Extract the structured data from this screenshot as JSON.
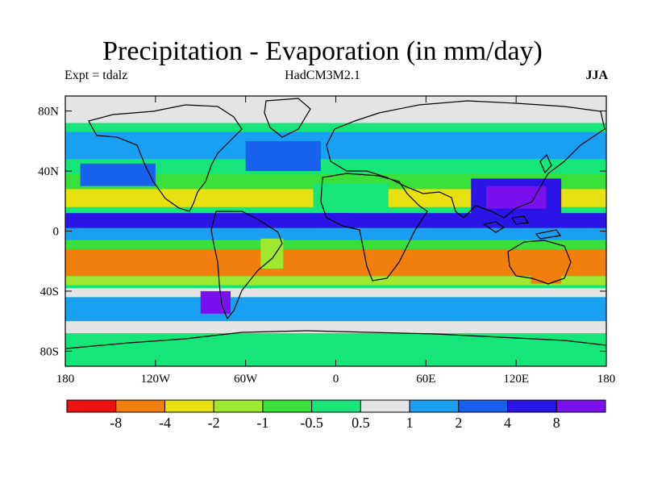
{
  "title": "Precipitation - Evaporation (in mm/day)",
  "experiment": "Expt = tdalz",
  "model": "HadCM3M2.1",
  "season": "JJA",
  "map": {
    "projection": "cylindrical equidistant",
    "lon_range": [
      -180,
      180
    ],
    "lat_range": [
      -90,
      90
    ],
    "lat_ticks": [
      {
        "lat": 80,
        "label": "80N"
      },
      {
        "lat": 40,
        "label": "40N"
      },
      {
        "lat": 0,
        "label": "0"
      },
      {
        "lat": -40,
        "label": "40S"
      },
      {
        "lat": -80,
        "label": "80S"
      }
    ],
    "lon_ticks": [
      {
        "lon": -180,
        "label": "180"
      },
      {
        "lon": -120,
        "label": "120W"
      },
      {
        "lon": -60,
        "label": "60W"
      },
      {
        "lon": 0,
        "label": "0"
      },
      {
        "lon": 60,
        "label": "60E"
      },
      {
        "lon": 120,
        "label": "120E"
      },
      {
        "lon": 180,
        "label": "180"
      }
    ]
  },
  "colorbar": {
    "colors": [
      "#ee1111",
      "#f07f0c",
      "#e8e010",
      "#9ee830",
      "#3ae03a",
      "#16e67a",
      "#e4e4e4",
      "#1aa0f0",
      "#1860ee",
      "#2a14e6",
      "#7a10ee"
    ],
    "labels": [
      "-8",
      "-4",
      "-2",
      "-1",
      "-0.5",
      "0.5",
      "1",
      "2",
      "4",
      "8"
    ]
  },
  "regions": {
    "background": 5,
    "bands": [
      {
        "lat": [
          72,
          90
        ],
        "level": 6
      },
      {
        "lat": [
          48,
          66
        ],
        "level": 7
      },
      {
        "lat": [
          28,
          38
        ],
        "level": 4
      },
      {
        "lat": [
          16,
          28
        ],
        "level": 2
      },
      {
        "lat": [
          2,
          12
        ],
        "level": 9
      },
      {
        "lat": [
          -6,
          2
        ],
        "level": 7
      },
      {
        "lat": [
          -12,
          -6
        ],
        "level": 4
      },
      {
        "lat": [
          -30,
          -12
        ],
        "level": 1
      },
      {
        "lat": [
          -36,
          -30
        ],
        "level": 3
      },
      {
        "lat": [
          -44,
          -38
        ],
        "level": 6
      },
      {
        "lat": [
          -60,
          -44
        ],
        "level": 7
      },
      {
        "lat": [
          -68,
          -60
        ],
        "level": 6
      }
    ],
    "patches": [
      {
        "lon": [
          -170,
          -120
        ],
        "lat": [
          30,
          45
        ],
        "level": 8
      },
      {
        "lon": [
          -60,
          -10
        ],
        "lat": [
          40,
          60
        ],
        "level": 8
      },
      {
        "lon": [
          90,
          150
        ],
        "lat": [
          5,
          35
        ],
        "level": 9
      },
      {
        "lon": [
          100,
          140
        ],
        "lat": [
          15,
          30
        ],
        "level": 10
      },
      {
        "lon": [
          -90,
          -70
        ],
        "lat": [
          -55,
          -40
        ],
        "level": 10
      },
      {
        "lon": [
          -15,
          35
        ],
        "lat": [
          15,
          32
        ],
        "level": 5
      },
      {
        "lon": [
          -10,
          10
        ],
        "lat": [
          5,
          12
        ],
        "level": 9
      },
      {
        "lon": [
          130,
          150
        ],
        "lat": [
          -35,
          -15
        ],
        "level": 1
      },
      {
        "lon": [
          -50,
          -35
        ],
        "lat": [
          -25,
          -5
        ],
        "level": 3
      },
      {
        "lon": [
          -180,
          180
        ],
        "lat": [
          -90,
          -70
        ],
        "level": 5
      }
    ]
  }
}
